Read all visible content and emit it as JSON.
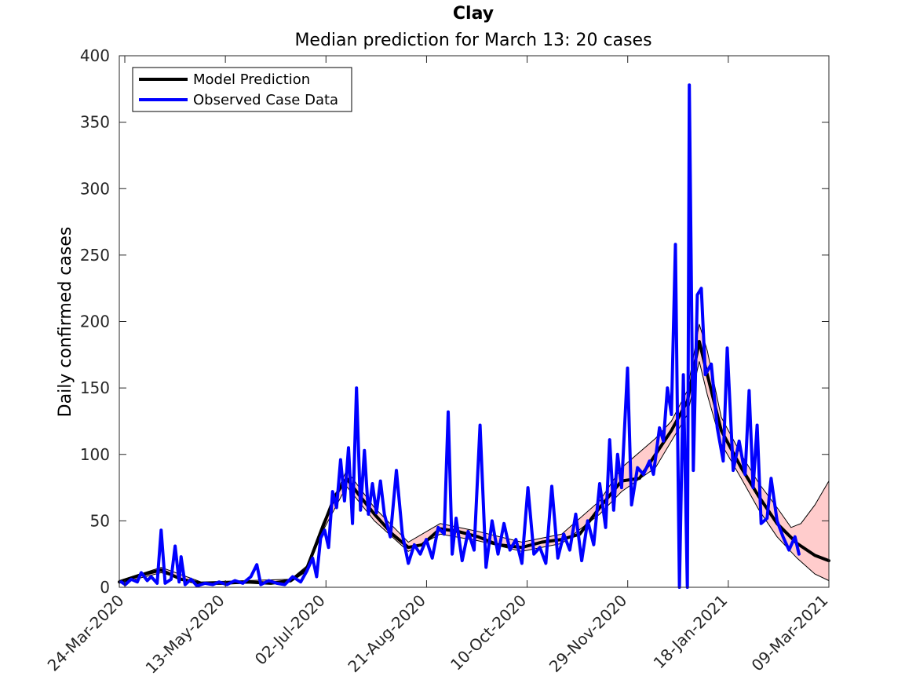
{
  "chart_data": {
    "type": "line",
    "title": "Clay",
    "subtitle": "Median prediction for March 13: 20 cases",
    "xlabel": "",
    "ylabel": "Daily confirmed cases",
    "x_tick_labels": [
      "24-Mar-2020",
      "13-May-2020",
      "02-Jul-2020",
      "21-Aug-2020",
      "10-Oct-2020",
      "29-Nov-2020",
      "18-Jan-2021",
      "09-Mar-2021"
    ],
    "xlim": [
      "2020-03-22",
      "2021-03-13"
    ],
    "ylim": [
      0,
      400
    ],
    "y_ticks": [
      0,
      50,
      100,
      150,
      200,
      250,
      300,
      350,
      400
    ],
    "grid": false,
    "legend_position": "top-left",
    "colors": {
      "model": "#000000",
      "observed": "#0000ff",
      "band_fill": "#ffcccc",
      "band_edge": "#000000"
    },
    "series": [
      {
        "name": "Model Prediction",
        "points": [
          [
            "2020-03-22",
            4
          ],
          [
            "2020-04-01",
            9
          ],
          [
            "2020-04-12",
            13
          ],
          [
            "2020-04-22",
            6
          ],
          [
            "2020-05-02",
            3
          ],
          [
            "2020-05-13",
            3
          ],
          [
            "2020-05-25",
            4
          ],
          [
            "2020-06-06",
            3
          ],
          [
            "2020-06-16",
            5
          ],
          [
            "2020-06-24",
            14
          ],
          [
            "2020-07-02",
            45
          ],
          [
            "2020-07-08",
            68
          ],
          [
            "2020-07-14",
            82
          ],
          [
            "2020-07-20",
            70
          ],
          [
            "2020-07-28",
            55
          ],
          [
            "2020-08-06",
            40
          ],
          [
            "2020-08-14",
            30
          ],
          [
            "2020-08-21",
            32
          ],
          [
            "2020-08-30",
            44
          ],
          [
            "2020-09-08",
            42
          ],
          [
            "2020-09-18",
            38
          ],
          [
            "2020-09-28",
            32
          ],
          [
            "2020-10-10",
            30
          ],
          [
            "2020-10-20",
            34
          ],
          [
            "2020-10-30",
            36
          ],
          [
            "2020-11-08",
            40
          ],
          [
            "2020-11-18",
            60
          ],
          [
            "2020-11-29",
            80
          ],
          [
            "2020-12-08",
            82
          ],
          [
            "2020-12-16",
            100
          ],
          [
            "2020-12-24",
            118
          ],
          [
            "2021-01-01",
            140
          ],
          [
            "2021-01-07",
            185
          ],
          [
            "2021-01-11",
            160
          ],
          [
            "2021-01-18",
            118
          ],
          [
            "2021-01-28",
            90
          ],
          [
            "2021-02-06",
            68
          ],
          [
            "2021-02-15",
            48
          ],
          [
            "2021-02-25",
            33
          ],
          [
            "2021-03-06",
            24
          ],
          [
            "2021-03-13",
            20
          ]
        ]
      },
      {
        "name": "Observed Case Data",
        "points": [
          [
            "2020-03-23",
            4
          ],
          [
            "2020-03-25",
            2
          ],
          [
            "2020-03-28",
            6
          ],
          [
            "2020-03-31",
            4
          ],
          [
            "2020-04-02",
            11
          ],
          [
            "2020-04-05",
            5
          ],
          [
            "2020-04-07",
            8
          ],
          [
            "2020-04-10",
            3
          ],
          [
            "2020-04-12",
            43
          ],
          [
            "2020-04-14",
            3
          ],
          [
            "2020-04-17",
            6
          ],
          [
            "2020-04-19",
            31
          ],
          [
            "2020-04-21",
            4
          ],
          [
            "2020-04-22",
            23
          ],
          [
            "2020-04-24",
            2
          ],
          [
            "2020-04-27",
            6
          ],
          [
            "2020-04-30",
            1
          ],
          [
            "2020-05-04",
            3
          ],
          [
            "2020-05-08",
            2
          ],
          [
            "2020-05-11",
            4
          ],
          [
            "2020-05-15",
            2
          ],
          [
            "2020-05-19",
            5
          ],
          [
            "2020-05-23",
            3
          ],
          [
            "2020-05-27",
            8
          ],
          [
            "2020-05-30",
            17
          ],
          [
            "2020-06-01",
            2
          ],
          [
            "2020-06-05",
            5
          ],
          [
            "2020-06-09",
            3
          ],
          [
            "2020-06-13",
            2
          ],
          [
            "2020-06-17",
            8
          ],
          [
            "2020-06-21",
            4
          ],
          [
            "2020-06-24",
            12
          ],
          [
            "2020-06-27",
            22
          ],
          [
            "2020-06-29",
            8
          ],
          [
            "2020-07-01",
            37
          ],
          [
            "2020-07-03",
            43
          ],
          [
            "2020-07-05",
            30
          ],
          [
            "2020-07-07",
            72
          ],
          [
            "2020-07-09",
            60
          ],
          [
            "2020-07-11",
            96
          ],
          [
            "2020-07-13",
            65
          ],
          [
            "2020-07-15",
            105
          ],
          [
            "2020-07-17",
            48
          ],
          [
            "2020-07-19",
            150
          ],
          [
            "2020-07-21",
            58
          ],
          [
            "2020-07-23",
            103
          ],
          [
            "2020-07-25",
            55
          ],
          [
            "2020-07-27",
            78
          ],
          [
            "2020-07-29",
            56
          ],
          [
            "2020-07-31",
            80
          ],
          [
            "2020-08-02",
            55
          ],
          [
            "2020-08-05",
            38
          ],
          [
            "2020-08-08",
            88
          ],
          [
            "2020-08-11",
            40
          ],
          [
            "2020-08-14",
            18
          ],
          [
            "2020-08-17",
            32
          ],
          [
            "2020-08-20",
            25
          ],
          [
            "2020-08-23",
            36
          ],
          [
            "2020-08-26",
            22
          ],
          [
            "2020-08-29",
            45
          ],
          [
            "2020-09-01",
            40
          ],
          [
            "2020-09-03",
            132
          ],
          [
            "2020-09-05",
            25
          ],
          [
            "2020-09-07",
            52
          ],
          [
            "2020-09-10",
            20
          ],
          [
            "2020-09-13",
            42
          ],
          [
            "2020-09-16",
            28
          ],
          [
            "2020-09-19",
            122
          ],
          [
            "2020-09-22",
            15
          ],
          [
            "2020-09-25",
            50
          ],
          [
            "2020-09-28",
            25
          ],
          [
            "2020-10-01",
            48
          ],
          [
            "2020-10-04",
            28
          ],
          [
            "2020-10-07",
            36
          ],
          [
            "2020-10-10",
            18
          ],
          [
            "2020-10-13",
            75
          ],
          [
            "2020-10-16",
            25
          ],
          [
            "2020-10-19",
            30
          ],
          [
            "2020-10-22",
            18
          ],
          [
            "2020-10-25",
            76
          ],
          [
            "2020-10-28",
            22
          ],
          [
            "2020-10-31",
            40
          ],
          [
            "2020-11-03",
            28
          ],
          [
            "2020-11-06",
            55
          ],
          [
            "2020-11-09",
            20
          ],
          [
            "2020-11-12",
            50
          ],
          [
            "2020-11-15",
            32
          ],
          [
            "2020-11-18",
            78
          ],
          [
            "2020-11-21",
            45
          ],
          [
            "2020-11-23",
            111
          ],
          [
            "2020-11-25",
            58
          ],
          [
            "2020-11-27",
            100
          ],
          [
            "2020-11-29",
            75
          ],
          [
            "2020-12-02",
            165
          ],
          [
            "2020-12-04",
            62
          ],
          [
            "2020-12-07",
            90
          ],
          [
            "2020-12-10",
            85
          ],
          [
            "2020-12-13",
            95
          ],
          [
            "2020-12-15",
            85
          ],
          [
            "2020-12-18",
            120
          ],
          [
            "2020-12-20",
            110
          ],
          [
            "2020-12-22",
            150
          ],
          [
            "2020-12-24",
            130
          ],
          [
            "2020-12-26",
            258
          ],
          [
            "2020-12-28",
            0
          ],
          [
            "2020-12-30",
            160
          ],
          [
            "2021-01-01",
            0
          ],
          [
            "2021-01-02",
            378
          ],
          [
            "2021-01-04",
            88
          ],
          [
            "2021-01-06",
            220
          ],
          [
            "2021-01-08",
            225
          ],
          [
            "2021-01-10",
            160
          ],
          [
            "2021-01-13",
            168
          ],
          [
            "2021-01-16",
            120
          ],
          [
            "2021-01-19",
            95
          ],
          [
            "2021-01-21",
            180
          ],
          [
            "2021-01-24",
            88
          ],
          [
            "2021-01-27",
            110
          ],
          [
            "2021-01-30",
            85
          ],
          [
            "2021-02-01",
            148
          ],
          [
            "2021-02-03",
            75
          ],
          [
            "2021-02-05",
            122
          ],
          [
            "2021-02-07",
            48
          ],
          [
            "2021-02-10",
            52
          ],
          [
            "2021-02-12",
            82
          ],
          [
            "2021-02-15",
            50
          ],
          [
            "2021-02-18",
            38
          ],
          [
            "2021-02-21",
            28
          ],
          [
            "2021-02-24",
            38
          ],
          [
            "2021-02-26",
            25
          ]
        ]
      }
    ],
    "prediction_interval": {
      "upper": [
        [
          "2020-03-22",
          5
        ],
        [
          "2020-04-12",
          15
        ],
        [
          "2020-05-02",
          4
        ],
        [
          "2020-06-16",
          6
        ],
        [
          "2020-06-24",
          16
        ],
        [
          "2020-07-02",
          48
        ],
        [
          "2020-07-14",
          88
        ],
        [
          "2020-07-28",
          60
        ],
        [
          "2020-08-14",
          34
        ],
        [
          "2020-08-30",
          48
        ],
        [
          "2020-09-18",
          42
        ],
        [
          "2020-10-10",
          34
        ],
        [
          "2020-10-30",
          40
        ],
        [
          "2020-11-18",
          65
        ],
        [
          "2020-11-29",
          90
        ],
        [
          "2020-12-16",
          112
        ],
        [
          "2020-12-24",
          125
        ],
        [
          "2021-01-01",
          148
        ],
        [
          "2021-01-07",
          198
        ],
        [
          "2021-01-11",
          178
        ],
        [
          "2021-01-18",
          128
        ],
        [
          "2021-01-28",
          100
        ],
        [
          "2021-02-06",
          78
        ],
        [
          "2021-02-15",
          60
        ],
        [
          "2021-02-22",
          45
        ],
        [
          "2021-02-27",
          48
        ],
        [
          "2021-03-06",
          62
        ],
        [
          "2021-03-13",
          80
        ]
      ],
      "lower": [
        [
          "2020-03-22",
          3
        ],
        [
          "2020-04-12",
          11
        ],
        [
          "2020-05-02",
          2
        ],
        [
          "2020-06-16",
          4
        ],
        [
          "2020-06-24",
          12
        ],
        [
          "2020-07-02",
          42
        ],
        [
          "2020-07-14",
          76
        ],
        [
          "2020-07-28",
          50
        ],
        [
          "2020-08-14",
          27
        ],
        [
          "2020-08-30",
          40
        ],
        [
          "2020-09-18",
          35
        ],
        [
          "2020-10-10",
          27
        ],
        [
          "2020-10-30",
          33
        ],
        [
          "2020-11-18",
          55
        ],
        [
          "2020-11-29",
          72
        ],
        [
          "2020-12-16",
          90
        ],
        [
          "2020-12-24",
          110
        ],
        [
          "2021-01-01",
          130
        ],
        [
          "2021-01-07",
          170
        ],
        [
          "2021-01-11",
          145
        ],
        [
          "2021-01-18",
          108
        ],
        [
          "2021-01-28",
          82
        ],
        [
          "2021-02-06",
          58
        ],
        [
          "2021-02-15",
          38
        ],
        [
          "2021-02-25",
          22
        ],
        [
          "2021-03-06",
          10
        ],
        [
          "2021-03-13",
          5
        ]
      ]
    }
  }
}
